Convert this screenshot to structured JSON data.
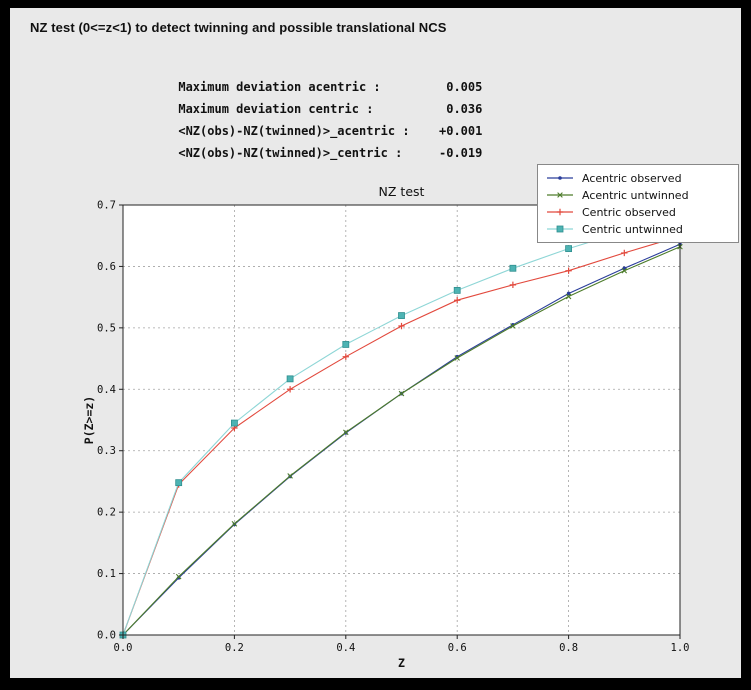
{
  "header": {
    "title": "NZ test (0<=z<1) to detect twinning and possible translational NCS"
  },
  "stats": {
    "rows": [
      {
        "label": "Maximum deviation acentric :",
        "value": "0.005"
      },
      {
        "label": "Maximum deviation centric :",
        "value": "0.036"
      },
      {
        "label": "<NZ(obs)-NZ(twinned)>_acentric :",
        "value": "+0.001"
      },
      {
        "label": "<NZ(obs)-NZ(twinned)>_centric :",
        "value": "-0.019"
      }
    ]
  },
  "chart_data": {
    "type": "line",
    "title": "NZ test",
    "xlabel": "Z",
    "ylabel": "P(Z>=z)",
    "xlim": [
      0.0,
      1.0
    ],
    "ylim": [
      0.0,
      0.7
    ],
    "xticks": [
      "0.0",
      "0.2",
      "0.4",
      "0.6",
      "0.8",
      "1.0"
    ],
    "yticks": [
      "0.0",
      "0.1",
      "0.2",
      "0.3",
      "0.4",
      "0.5",
      "0.6",
      "0.7"
    ],
    "grid": "dashed",
    "legend_position": "upper right",
    "x": [
      0.0,
      0.1,
      0.2,
      0.3,
      0.4,
      0.5,
      0.6,
      0.7,
      0.8,
      0.9,
      1.0
    ],
    "series": [
      {
        "name": "Acentric observed",
        "color": "#2a3d9b",
        "marker": "dot",
        "values": [
          0.0,
          0.093,
          0.18,
          0.258,
          0.329,
          0.393,
          0.453,
          0.505,
          0.556,
          0.597,
          0.636
        ]
      },
      {
        "name": "Acentric untwinned",
        "color": "#4d7c2b",
        "marker": "x",
        "values": [
          0.0,
          0.095,
          0.181,
          0.259,
          0.33,
          0.393,
          0.451,
          0.503,
          0.551,
          0.593,
          0.632
        ]
      },
      {
        "name": "Centric observed",
        "color": "#e2493d",
        "marker": "plus",
        "values": [
          0.0,
          0.245,
          0.337,
          0.4,
          0.453,
          0.503,
          0.545,
          0.57,
          0.593,
          0.622,
          0.649
        ]
      },
      {
        "name": "Centric untwinned",
        "color": "#8ed6d6",
        "marker": "square",
        "marker_color": "#4db3b3",
        "marker_edge": "#2f8f8f",
        "values": [
          0.0,
          0.248,
          0.345,
          0.417,
          0.473,
          0.52,
          0.561,
          0.597,
          0.629,
          0.657,
          0.683
        ]
      }
    ]
  }
}
